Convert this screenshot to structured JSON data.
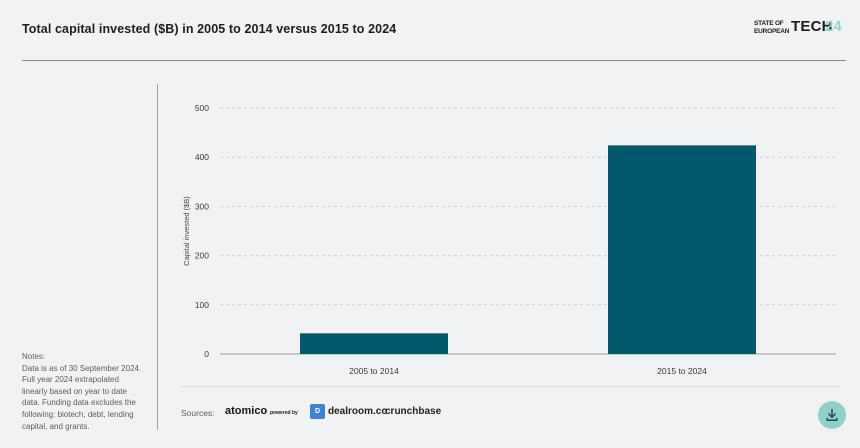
{
  "header": {
    "title": "Total capital invested ($B) in 2005 to 2014 versus 2015 to 2024",
    "logo": {
      "line1": "STATE OF",
      "line2": "EUROPEAN",
      "word": "TECH",
      "num": "24"
    }
  },
  "notes": {
    "label": "Notes:",
    "text": "Data is as of 30 September 2024.\nFull year 2024 extrapolated\nlinearly based on year to date\ndata. Funding data excludes the\nfollowing: biotech, debt, lending\ncapital, and grants."
  },
  "chart_data": {
    "type": "bar",
    "categories": [
      "2005 to 2014",
      "2015 to 2024"
    ],
    "values": [
      42,
      424
    ],
    "xlabel": "",
    "ylabel": "Capital invested ($B)",
    "ylim": [
      0,
      500
    ],
    "yticks": [
      0,
      100,
      200,
      300,
      400,
      500
    ],
    "grid": true,
    "colors": {
      "bar": "#005a6b",
      "grid": "#cfcfcf",
      "tick_text": "#3a3a3a"
    }
  },
  "sources": {
    "label": "Sources:",
    "atomico": "atomico",
    "powered": "powered by",
    "dealroom_icon": "D",
    "dealroom": "dealroom.co",
    "crunchbase": "crunchbase"
  },
  "actions": {
    "download_icon": "download-icon"
  },
  "colors": {
    "accent": "#8fd0c8",
    "background": "#f1f2f3"
  }
}
